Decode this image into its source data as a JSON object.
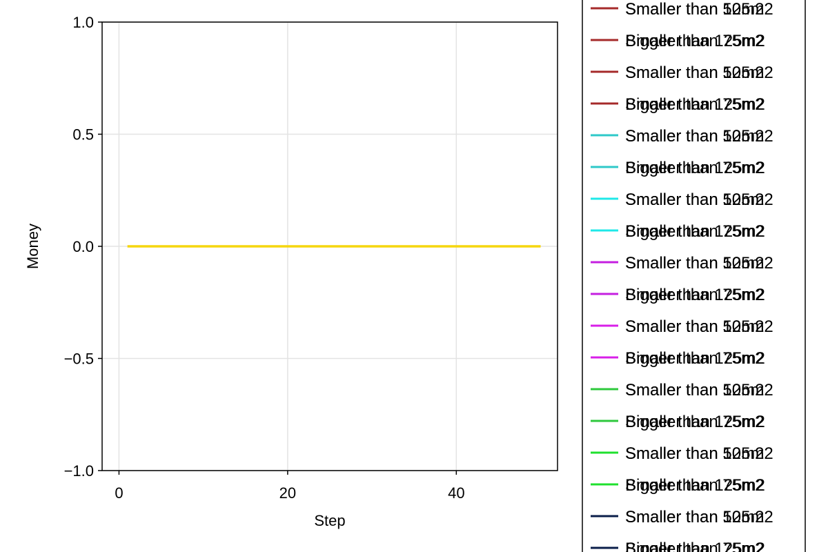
{
  "chart_data": {
    "type": "line",
    "xlabel": "Step",
    "ylabel": "Money",
    "xlim": [
      -2,
      52
    ],
    "ylim": [
      -1.0,
      1.0
    ],
    "x_ticks": [
      0,
      20,
      40
    ],
    "x_tick_labels": [
      "0",
      "20",
      "40"
    ],
    "y_ticks": [
      -1.0,
      -0.5,
      0.0,
      0.5,
      1.0
    ],
    "y_tick_labels": [
      "−1.0",
      "−0.5",
      "0.0",
      "0.5",
      "1.0"
    ],
    "grid": true,
    "legend_placement": "right",
    "series": [
      {
        "x": [
          1,
          50
        ],
        "y": [
          0,
          0
        ],
        "color": "#f5d60f"
      }
    ],
    "legend": [
      {
        "color": "#a52a2a",
        "labels": [
          "Smaller than 50m2",
          "Smaller than 125m2"
        ]
      },
      {
        "color": "#a52a2a",
        "labels": [
          "Bigger than 125m2",
          "Smaller than 75m2"
        ]
      },
      {
        "color": "#a52a2a",
        "labels": [
          "Smaller than 50m2",
          "Smaller than 125m2"
        ]
      },
      {
        "color": "#a52a2a",
        "labels": [
          "Bigger than 125m2",
          "Smaller than 75m2"
        ]
      },
      {
        "color": "#2ec8c8",
        "labels": [
          "Smaller than 50m2",
          "Smaller than 125m2"
        ]
      },
      {
        "color": "#2ec8c8",
        "labels": [
          "Bigger than 125m2",
          "Smaller than 75m2"
        ]
      },
      {
        "color": "#1fe8e8",
        "labels": [
          "Smaller than 50m2",
          "Smaller than 125m2"
        ]
      },
      {
        "color": "#1fe8e8",
        "labels": [
          "Bigger than 125m2",
          "Smaller than 75m2"
        ]
      },
      {
        "color": "#c41fe0",
        "labels": [
          "Smaller than 50m2",
          "Smaller than 125m2"
        ]
      },
      {
        "color": "#c41fe0",
        "labels": [
          "Bigger than 125m2",
          "Smaller than 75m2"
        ]
      },
      {
        "color": "#d81fe8",
        "labels": [
          "Smaller than 50m2",
          "Smaller than 125m2"
        ]
      },
      {
        "color": "#d81fe8",
        "labels": [
          "Bigger than 125m2",
          "Smaller than 75m2"
        ]
      },
      {
        "color": "#2ec83c",
        "labels": [
          "Smaller than 50m2",
          "Smaller than 125m2"
        ]
      },
      {
        "color": "#2ec83c",
        "labels": [
          "Bigger than 125m2",
          "Smaller than 75m2"
        ]
      },
      {
        "color": "#1fe02e",
        "labels": [
          "Smaller than 50m2",
          "Smaller than 125m2"
        ]
      },
      {
        "color": "#1fe02e",
        "labels": [
          "Bigger than 125m2",
          "Smaller than 75m2"
        ]
      },
      {
        "color": "#0a1e4a",
        "labels": [
          "Smaller than 50m2",
          "Smaller than 125m2"
        ]
      },
      {
        "color": "#0a1e4a",
        "labels": [
          "Bigger than 125m2",
          "Smaller than 75m2"
        ]
      }
    ]
  }
}
